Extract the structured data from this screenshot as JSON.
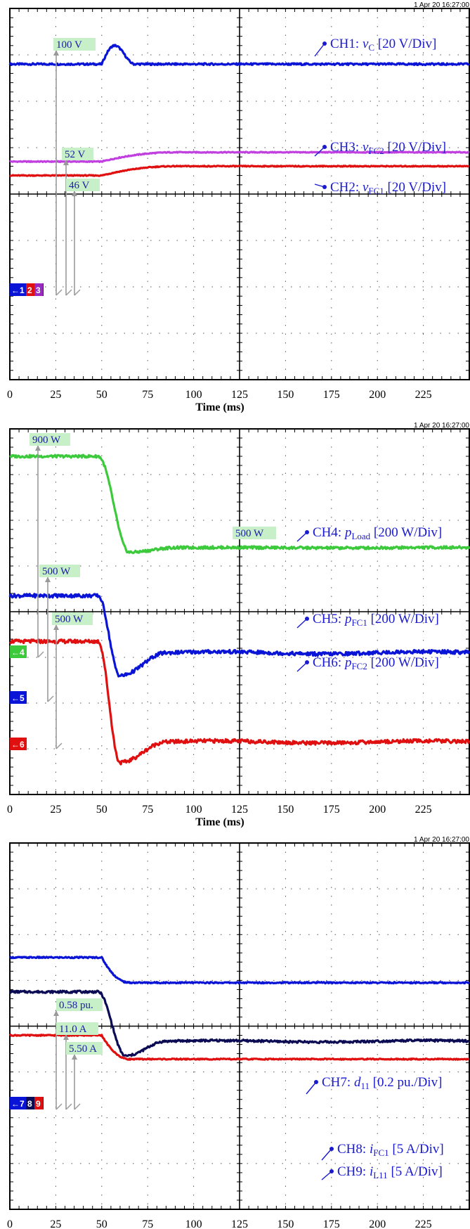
{
  "chart_data": [
    {
      "type": "line",
      "timestamp": "1 Apr 20  16:27:00",
      "xlabel": "Time (ms)",
      "xlim": [
        0,
        250
      ],
      "x_ticks": [
        "0",
        "25",
        "50",
        "75",
        "100",
        "125",
        "150",
        "175",
        "200",
        "225"
      ],
      "grid": true,
      "divisions": 8,
      "series": [
        {
          "name": "CH1: vC [20 V/Div]",
          "channel": "CH1",
          "symbol": "v",
          "sub": "C",
          "scale": "[20 V/Div]",
          "color": "#0a14d6",
          "unit": "V",
          "steady_before": 100,
          "peak": 108,
          "peak_at": 57,
          "steady_after": 100,
          "x_start": 50,
          "x_end": 68,
          "ripple": 0.4
        },
        {
          "name": "CH3: vFC2 [20 V/Div]",
          "channel": "CH3",
          "symbol": "v",
          "sub": "FC2",
          "scale": "[20 V/Div]",
          "color": "#c040e0",
          "unit": "V",
          "steady_before": 52,
          "steady_after": 56,
          "x_start": 50,
          "x_end": 90,
          "ripple": 0.2
        },
        {
          "name": "CH2: vFC1 [20 V/Div]",
          "channel": "CH2",
          "symbol": "v",
          "sub": "FC1",
          "scale": "[20 V/Div]",
          "color": "#e01010",
          "unit": "V",
          "steady_before": 46,
          "steady_after": 50,
          "x_start": 50,
          "x_end": 90,
          "ripple": 0.2
        }
      ],
      "annotations": [
        "100 V",
        "52 V",
        "46 V"
      ],
      "markers": [
        {
          "arrow": "←",
          "digits": [
            {
              "d": "1",
              "color": "#0a14d6"
            },
            {
              "d": "2",
              "color": "#e01010"
            },
            {
              "d": "3",
              "color": "#9a2ac0"
            }
          ]
        }
      ]
    },
    {
      "type": "line",
      "timestamp": "1 Apr 20  16:27:00",
      "xlabel": "Time (ms)",
      "xlim": [
        0,
        250
      ],
      "x_ticks": [
        "0",
        "25",
        "50",
        "75",
        "100",
        "125",
        "150",
        "175",
        "200",
        "225"
      ],
      "grid": true,
      "divisions": 8,
      "series": [
        {
          "name": "CH4: pLoad [200 W/Div]",
          "channel": "CH4",
          "symbol": "p",
          "sub": "Load",
          "scale": "[200 W/Div]",
          "color": "#3cc93c",
          "unit": "W",
          "steady_before": 900,
          "trough": 480,
          "trough_at": 65,
          "steady_after": 500,
          "x_start": 48,
          "x_end": 90,
          "ripple": 6
        },
        {
          "name": "CH5: pFC1 [200 W/Div]",
          "channel": "CH5",
          "symbol": "p",
          "sub": "FC1",
          "scale": "[200 W/Div]",
          "color": "#0a14d6",
          "unit": "W",
          "steady_before": 500,
          "trough": 150,
          "trough_at": 60,
          "steady_after": 250,
          "x_start": 48,
          "x_end": 85,
          "ripple": 8
        },
        {
          "name": "CH6: pFC2 [200 W/Div]",
          "channel": "CH6",
          "symbol": "p",
          "sub": "FC2",
          "scale": "[200 W/Div]",
          "color": "#e01010",
          "unit": "W",
          "steady_before": 500,
          "trough": -30,
          "trough_at": 60,
          "steady_after": 60,
          "x_start": 48,
          "x_end": 85,
          "ripple": 8
        }
      ],
      "annotations": [
        "900 W",
        "500 W",
        "500 W",
        "500 W"
      ],
      "markers": [
        {
          "arrow": "←",
          "digits": [
            {
              "d": "4",
              "color": "#3cc93c"
            }
          ]
        },
        {
          "arrow": "←",
          "digits": [
            {
              "d": "5",
              "color": "#0a14d6"
            }
          ]
        },
        {
          "arrow": "←",
          "digits": [
            {
              "d": "6",
              "color": "#e01010"
            }
          ]
        }
      ]
    },
    {
      "type": "line",
      "timestamp": "1 Apr 20  16:27:00",
      "xlabel": "Time (ms)",
      "xlim": [
        0,
        250
      ],
      "x_ticks": [
        "0",
        "25",
        "50",
        "75",
        "100",
        "125",
        "150",
        "175",
        "200",
        "225"
      ],
      "grid": true,
      "divisions": 8,
      "series": [
        {
          "name": "CH7: d11 [0.2 pu./Div]",
          "channel": "CH7",
          "symbol": "d",
          "sub": "11",
          "scale": "[0.2 pu./Div]",
          "color": "#0a14d6",
          "unit": "pu.",
          "steady_before": 0.58,
          "steady_after": 0.47,
          "x_start": 50,
          "x_end": 65,
          "ripple": 0.003
        },
        {
          "name": "CH8: iFC1 [5 A/Div]",
          "channel": "CH8",
          "symbol": "i",
          "sub": "FC1",
          "scale": "[5 A/Div]",
          "color": "#0c0c55",
          "unit": "A",
          "steady_before": 11.0,
          "trough": 4.0,
          "trough_at": 63,
          "steady_after": 5.6,
          "x_start": 48,
          "x_end": 85,
          "ripple": 0.12
        },
        {
          "name": "CH9: iL11 [5 A/Div]",
          "channel": "CH9",
          "symbol": "i",
          "sub": "L11",
          "scale": "[5 A/Div]",
          "color": "#e01010",
          "unit": "A",
          "steady_before": 5.5,
          "steady_after": 2.9,
          "x_start": 50,
          "x_end": 65,
          "ripple": 0.06
        }
      ],
      "annotations": [
        "0.58 pu.",
        "11.0 A",
        "5.50 A"
      ],
      "markers": [
        {
          "arrow": "←",
          "digits": [
            {
              "d": "7",
              "color": "#0a14d6"
            },
            {
              "d": "8",
              "color": "#0c0c55"
            },
            {
              "d": "9",
              "color": "#e01010"
            }
          ]
        }
      ]
    }
  ]
}
